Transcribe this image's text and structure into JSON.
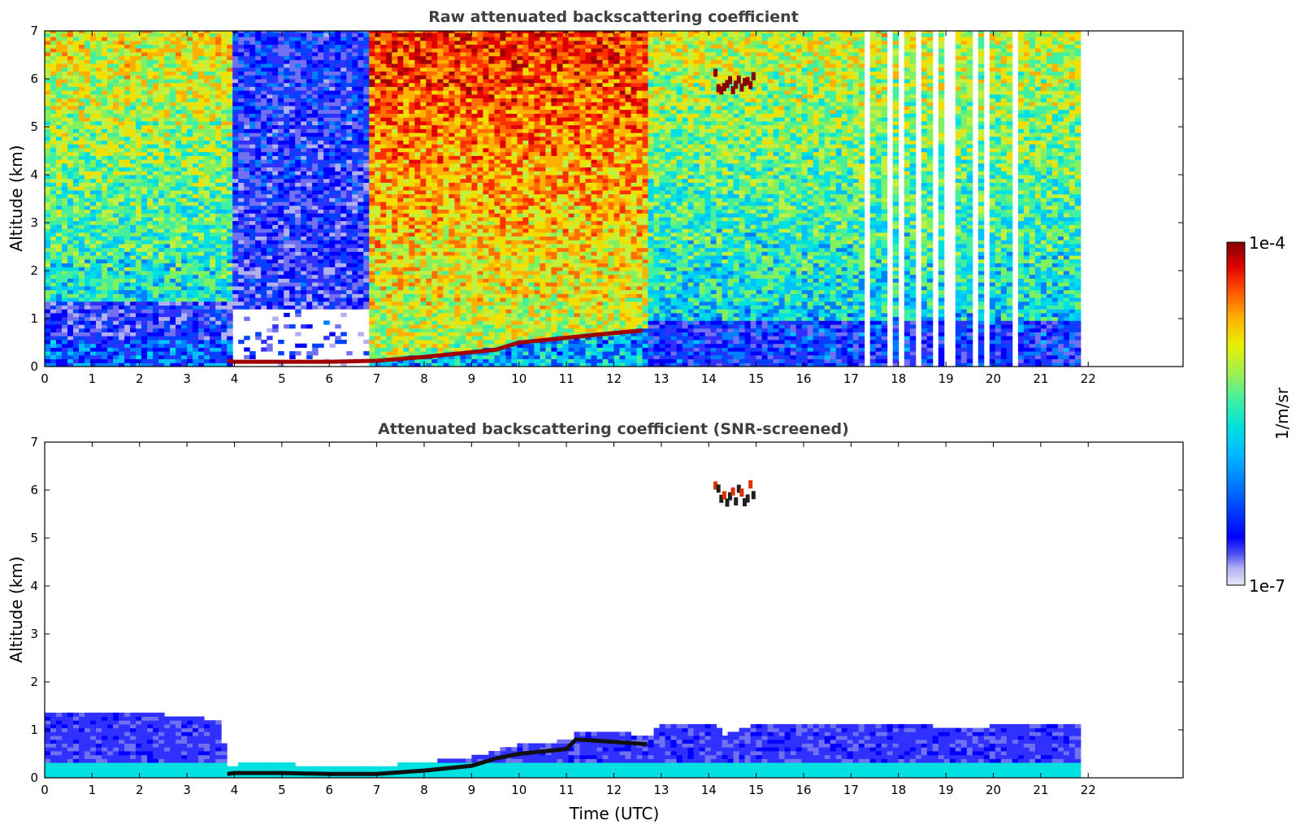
{
  "chart_data": [
    {
      "type": "heatmap",
      "title": "Raw attenuated backscattering coefficient",
      "xlabel": "",
      "ylabel": "Altitude (km)",
      "xlim": [
        0,
        24
      ],
      "ylim": [
        0,
        7
      ],
      "xticks": [
        "0",
        "1",
        "2",
        "3",
        "4",
        "5",
        "6",
        "7",
        "8",
        "9",
        "10",
        "11",
        "12",
        "13",
        "14",
        "15",
        "16",
        "17",
        "18",
        "19",
        "20",
        "21",
        "22"
      ],
      "yticks": [
        "0",
        "1",
        "2",
        "3",
        "4",
        "5",
        "6",
        "7"
      ],
      "data_end_time": 21.8,
      "boundary_layer_top_km": [
        [
          3.85,
          0.12
        ],
        [
          4,
          0.1
        ],
        [
          5,
          0.1
        ],
        [
          6,
          0.1
        ],
        [
          7,
          0.12
        ],
        [
          8,
          0.2
        ],
        [
          8.5,
          0.25
        ],
        [
          9,
          0.3
        ],
        [
          9.5,
          0.35
        ],
        [
          10,
          0.5
        ],
        [
          10.5,
          0.55
        ],
        [
          11,
          0.6
        ],
        [
          11.5,
          0.65
        ],
        [
          12,
          0.7
        ],
        [
          12.6,
          0.75
        ]
      ],
      "cloud": {
        "time_range": [
          14.1,
          14.9
        ],
        "altitude_km": [
          5.7,
          6.1
        ]
      },
      "gap_times": [
        17.3,
        17.8,
        17.95,
        18.4,
        18.75,
        19.0,
        19.05,
        19.6,
        19.8,
        20.4
      ]
    },
    {
      "type": "heatmap",
      "title": "Attenuated backscattering coefficient (SNR-screened)",
      "xlabel": "Time (UTC)",
      "ylabel": "Altitude (km)",
      "xlim": [
        0,
        24
      ],
      "ylim": [
        0,
        7
      ],
      "xticks": [
        "0",
        "1",
        "2",
        "3",
        "4",
        "5",
        "6",
        "7",
        "8",
        "9",
        "10",
        "11",
        "12",
        "13",
        "14",
        "15",
        "16",
        "17",
        "18",
        "19",
        "20",
        "21",
        "22"
      ],
      "yticks": [
        "0",
        "1",
        "2",
        "3",
        "4",
        "5",
        "6",
        "7"
      ],
      "data_end_time": 21.8,
      "signal_top_km": [
        [
          0,
          1.3
        ],
        [
          1,
          1.3
        ],
        [
          2,
          1.3
        ],
        [
          3,
          1.25
        ],
        [
          3.6,
          1.15
        ],
        [
          3.85,
          0.2
        ],
        [
          4,
          0.25
        ],
        [
          5,
          0.25
        ],
        [
          6,
          0.2
        ],
        [
          7,
          0.2
        ],
        [
          8,
          0.3
        ],
        [
          9,
          0.4
        ],
        [
          9.5,
          0.55
        ],
        [
          10,
          0.65
        ],
        [
          11,
          0.75
        ],
        [
          11.2,
          0.95
        ],
        [
          12,
          0.9
        ],
        [
          12.7,
          0.85
        ],
        [
          13,
          1.1
        ],
        [
          14,
          1.1
        ],
        [
          14.3,
          0.85
        ],
        [
          15,
          1.1
        ],
        [
          16,
          1.05
        ],
        [
          17,
          1.1
        ],
        [
          18,
          1.1
        ],
        [
          19,
          1.0
        ],
        [
          20,
          1.05
        ],
        [
          21,
          1.1
        ],
        [
          21.8,
          1.1
        ]
      ],
      "cloud": {
        "time_range": [
          14.1,
          14.9
        ],
        "altitude_km": [
          5.7,
          6.1
        ]
      }
    }
  ],
  "colorbar": {
    "label": "1/m/sr",
    "max_label": "1e-4",
    "min_label": "1e-7",
    "scale": "log",
    "colormap": [
      "#e8e8f8",
      "#b0b0f0",
      "#7070f0",
      "#3030ff",
      "#0000ff",
      "#0040ff",
      "#0080ff",
      "#00c0ff",
      "#00e0e0",
      "#40f0a0",
      "#80f060",
      "#c0f040",
      "#f0e000",
      "#ffb000",
      "#ff7000",
      "#ff3000",
      "#e00000",
      "#a00000",
      "#800000"
    ]
  }
}
